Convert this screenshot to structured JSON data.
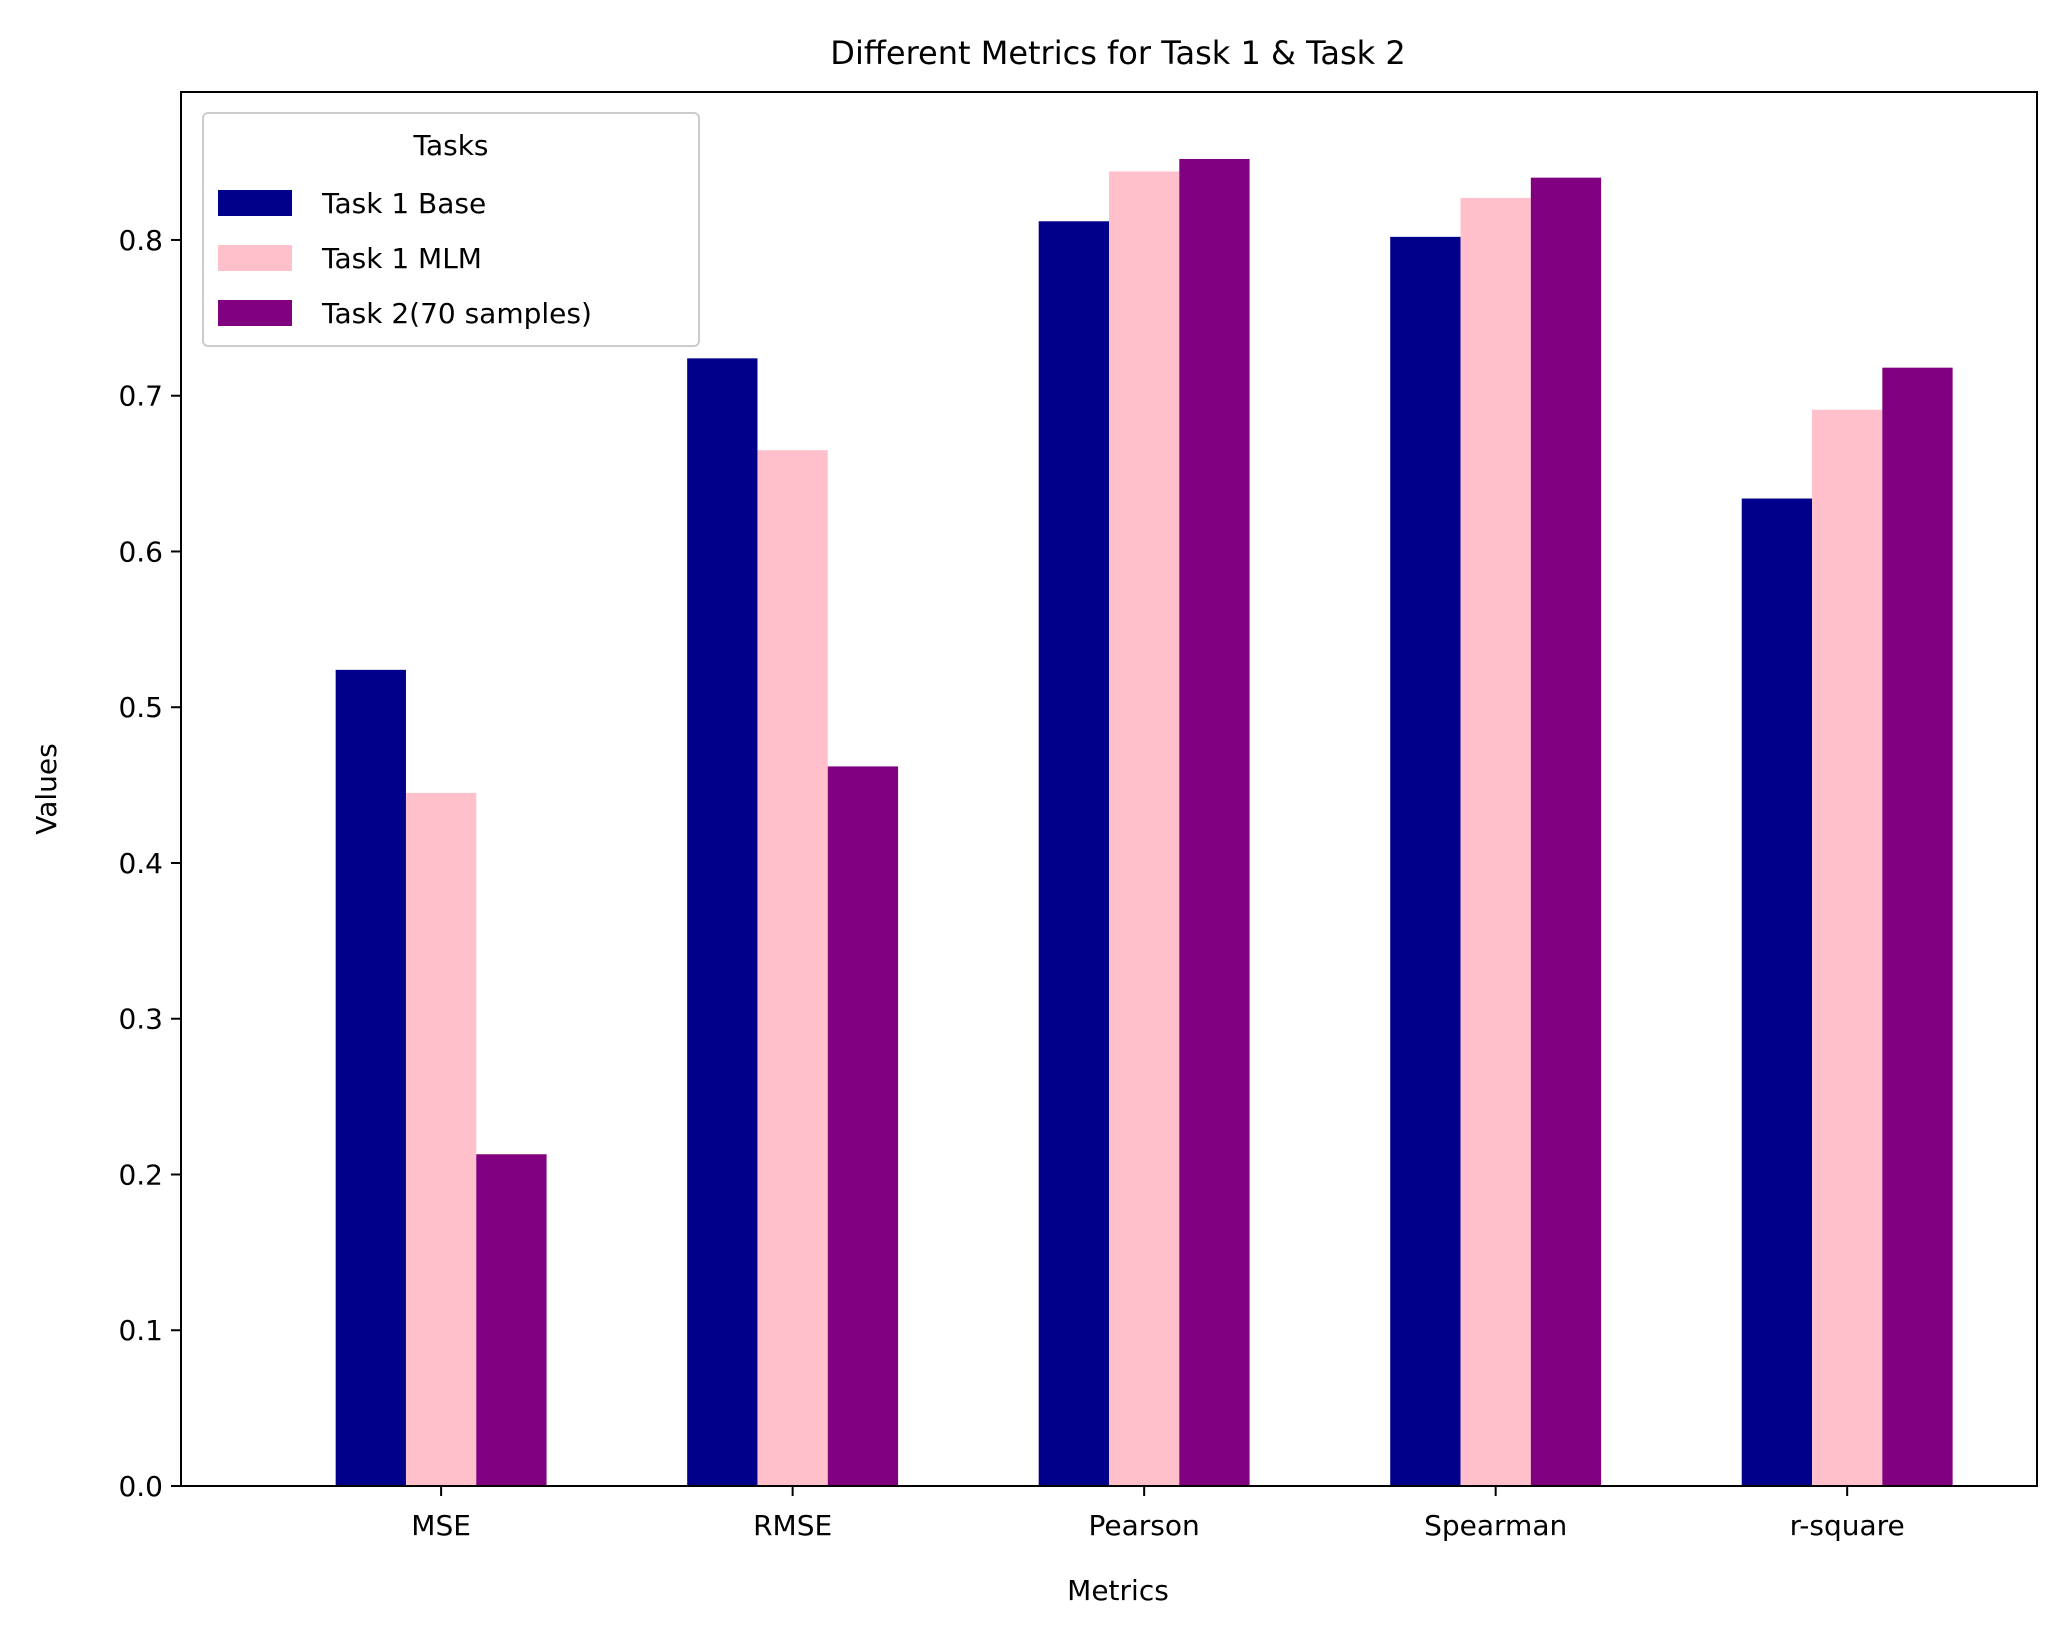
{
  "chart_data": {
    "type": "bar",
    "title": "Different Metrics for Task 1 & Task 2",
    "xlabel": "Metrics",
    "ylabel": "Values",
    "categories": [
      "MSE",
      "RMSE",
      "Pearson",
      "Spearman",
      "r-square"
    ],
    "ylim": [
      0,
      0.895
    ],
    "yticks": [
      "0.0",
      "0.1",
      "0.2",
      "0.3",
      "0.4",
      "0.5",
      "0.6",
      "0.7",
      "0.8"
    ],
    "grid": false,
    "legend": {
      "title": "Tasks",
      "placement": "top-left"
    },
    "series": [
      {
        "name": "Task 1 Base",
        "color": "#00008b",
        "values": [
          0.524,
          0.724,
          0.812,
          0.802,
          0.634
        ]
      },
      {
        "name": "Task 1 MLM",
        "color": "#ffc0cb",
        "values": [
          0.445,
          0.665,
          0.844,
          0.827,
          0.691
        ]
      },
      {
        "name": "Task 2(70 samples)",
        "color": "#800080",
        "values": [
          0.213,
          0.462,
          0.852,
          0.84,
          0.718
        ]
      }
    ]
  }
}
